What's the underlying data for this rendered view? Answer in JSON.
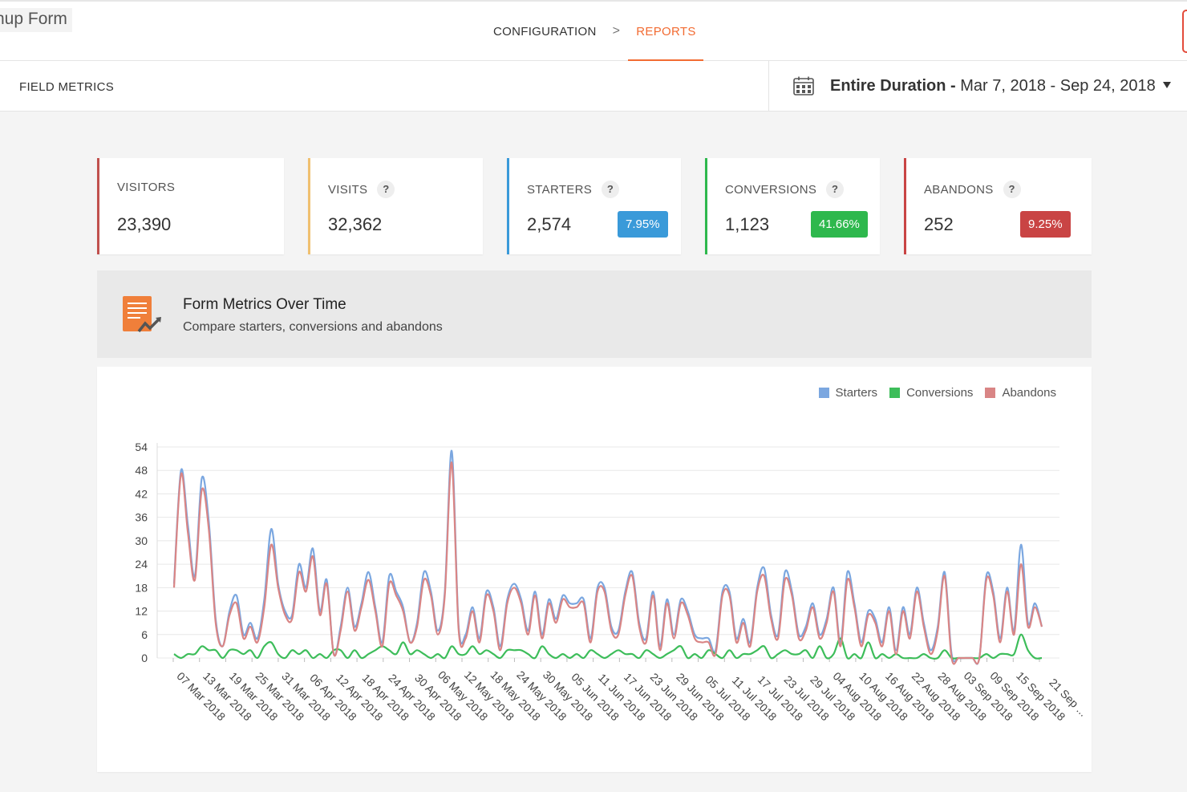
{
  "header": {
    "form_name": "nup Form",
    "breadcrumb": {
      "configuration": "CONFIGURATION",
      "separator": ">",
      "reports": "REPORTS"
    }
  },
  "subbar": {
    "section_label": "FIELD METRICS",
    "date_range": {
      "label_bold": "Entire Duration -",
      "range": "Mar 7, 2018 - Sep 24, 2018"
    },
    "icons": {
      "calendar": "calendar-icon",
      "dropdown": "caret-down-icon"
    }
  },
  "metrics": [
    {
      "name": "visitors",
      "title": "VISITORS",
      "value": "23,390",
      "help": false,
      "color": "#c0504d"
    },
    {
      "name": "visits",
      "title": "VISITS",
      "value": "32,362",
      "help": true,
      "help_text": "?",
      "color": "#f0c070"
    },
    {
      "name": "starters",
      "title": "STARTERS",
      "value": "2,574",
      "help": true,
      "help_text": "?",
      "badge": "7.95%",
      "badge_color": "#3a9ad9",
      "color": "#3a9ad9"
    },
    {
      "name": "conversions",
      "title": "CONVERSIONS",
      "value": "1,123",
      "help": true,
      "help_text": "?",
      "badge": "41.66%",
      "badge_color": "#2eb84d",
      "color": "#2eb84d"
    },
    {
      "name": "abandons",
      "title": "ABANDONS",
      "value": "252",
      "help": true,
      "help_text": "?",
      "badge": "9.25%",
      "badge_color": "#c94444",
      "color": "#c94444"
    }
  ],
  "section": {
    "title": "Form Metrics Over Time",
    "subtitle": "Compare starters, conversions and abandons",
    "icon": "form-chart-icon"
  },
  "chart_data": {
    "type": "line",
    "ylim": [
      0,
      54
    ],
    "yticks": [
      0,
      6,
      12,
      18,
      24,
      30,
      36,
      42,
      48,
      54
    ],
    "grid": true,
    "legend_position": "top-right",
    "x_labels": [
      "07 Mar 2018",
      "13 Mar 2018",
      "19 Mar 2018",
      "25 Mar 2018",
      "31 Mar 2018",
      "06 Apr 2018",
      "12 Apr 2018",
      "18 Apr 2018",
      "24 Apr 2018",
      "30 Apr 2018",
      "06 May 2018",
      "12 May 2018",
      "18 May 2018",
      "24 May 2018",
      "30 May 2018",
      "05 Jun 2018",
      "11 Jun 2018",
      "17 Jun 2018",
      "23 Jun 2018",
      "29 Jun 2018",
      "05 Jul 2018",
      "11 Jul 2018",
      "17 Jul 2018",
      "23 Jul 2018",
      "29 Jul 2018",
      "04 Aug 2018",
      "10 Aug 2018",
      "16 Aug 2018",
      "22 Aug 2018",
      "28 Aug 2018",
      "03 Sep 2018",
      "09 Sep 2018",
      "15 Sep 2018",
      "21 Sep ..."
    ],
    "series": [
      {
        "name": "Starters",
        "color": "#7ba7e0",
        "values": [
          19,
          48,
          34,
          21,
          46,
          35,
          10,
          3,
          12,
          16,
          6,
          9,
          5,
          15,
          33,
          19,
          12,
          11,
          24,
          18,
          28,
          12,
          20,
          1,
          8,
          18,
          8,
          14,
          22,
          13,
          4,
          21,
          17,
          13,
          4,
          9,
          22,
          17,
          7,
          17,
          53,
          8,
          6,
          13,
          5,
          17,
          13,
          3,
          15,
          19,
          15,
          7,
          17,
          6,
          15,
          10,
          16,
          14,
          14,
          15,
          5,
          18,
          18,
          8,
          7,
          17,
          22,
          9,
          5,
          17,
          3,
          15,
          6,
          15,
          12,
          6,
          5,
          5,
          2,
          17,
          17,
          5,
          10,
          4,
          18,
          23,
          11,
          6,
          22,
          17,
          6,
          8,
          14,
          6,
          10,
          18,
          4,
          22,
          14,
          4,
          12,
          10,
          4,
          13,
          2,
          13,
          6,
          18,
          9,
          2,
          8,
          22,
          1,
          0,
          0,
          0,
          0,
          21,
          17,
          5,
          18,
          7,
          29,
          9,
          14,
          8
        ]
      },
      {
        "name": "Conversions",
        "color": "#3dbd5a",
        "values": [
          1,
          0,
          1,
          1,
          3,
          2,
          2,
          0,
          2,
          2,
          1,
          2,
          0,
          3,
          4,
          1,
          0,
          2,
          1,
          2,
          0,
          1,
          0,
          2,
          2,
          0,
          2,
          0,
          1,
          2,
          3,
          2,
          1,
          4,
          1,
          2,
          1,
          0,
          1,
          0,
          3,
          1,
          1,
          3,
          1,
          2,
          1,
          0,
          2,
          2,
          2,
          1,
          0,
          3,
          1,
          0,
          1,
          0,
          1,
          0,
          2,
          1,
          0,
          1,
          2,
          1,
          1,
          0,
          2,
          1,
          0,
          1,
          2,
          3,
          0,
          1,
          0,
          2,
          1,
          0,
          2,
          0,
          1,
          1,
          2,
          3,
          0,
          1,
          2,
          1,
          1,
          2,
          0,
          3,
          0,
          1,
          5,
          0,
          1,
          0,
          4,
          0,
          1,
          0,
          1,
          0,
          0,
          0,
          1,
          0,
          0,
          2,
          0,
          0,
          0,
          0,
          0,
          1,
          0,
          1,
          1,
          1,
          6,
          2,
          0,
          0
        ]
      },
      {
        "name": "Abandons",
        "color": "#d98585",
        "values": [
          18,
          47,
          32,
          20,
          43,
          33,
          9,
          3,
          11,
          14,
          5,
          8,
          4,
          13,
          29,
          18,
          11,
          10,
          22,
          17,
          26,
          11,
          19,
          1,
          7,
          17,
          7,
          13,
          20,
          12,
          3,
          19,
          16,
          12,
          4,
          8,
          20,
          16,
          6,
          16,
          50,
          7,
          5,
          12,
          4,
          16,
          12,
          2,
          14,
          18,
          14,
          6,
          16,
          5,
          14,
          9,
          15,
          13,
          13,
          14,
          4,
          17,
          17,
          7,
          6,
          16,
          21,
          8,
          4,
          16,
          2,
          14,
          5,
          14,
          11,
          5,
          4,
          4,
          1,
          16,
          16,
          4,
          9,
          3,
          17,
          21,
          10,
          5,
          20,
          16,
          5,
          7,
          13,
          5,
          9,
          17,
          3,
          20,
          13,
          3,
          11,
          9,
          3,
          12,
          1,
          12,
          5,
          17,
          8,
          1,
          7,
          21,
          0,
          0,
          0,
          0,
          0,
          20,
          16,
          4,
          17,
          6,
          24,
          8,
          13,
          8
        ]
      }
    ]
  }
}
